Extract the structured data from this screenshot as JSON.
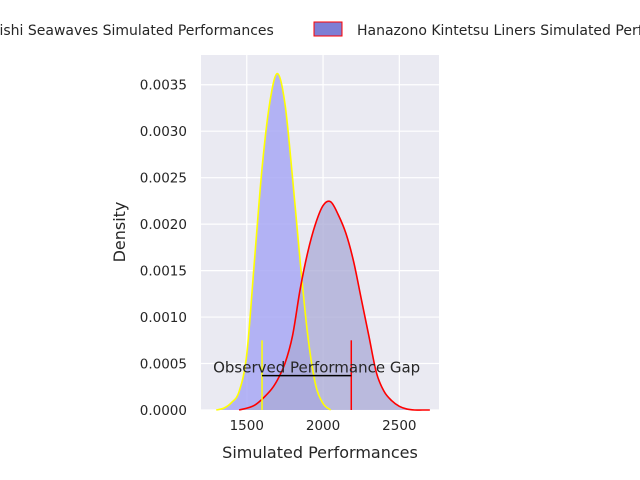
{
  "chart_data": {
    "type": "area",
    "title": "",
    "xlabel": "Simulated Performances",
    "ylabel": "Density",
    "xlim": [
      1200,
      2760
    ],
    "ylim": [
      0,
      0.00382
    ],
    "x_ticks": [
      1500,
      2000,
      2500
    ],
    "y_ticks": [
      0.0,
      0.0005,
      0.001,
      0.0015,
      0.002,
      0.0025,
      0.003,
      0.0035
    ],
    "x_tick_labels": [
      "1500",
      "2000",
      "2500"
    ],
    "y_tick_labels": [
      "0.0000",
      "0.0005",
      "0.0010",
      "0.0015",
      "0.0020",
      "0.0025",
      "0.0030",
      "0.0035"
    ],
    "grid": true,
    "legend": {
      "placement": "top",
      "position": "outside-top"
    },
    "series": [
      {
        "name": "Nishi Seawaves Simulated Performances",
        "legend_label": "Nishi Seawaves Simulated Performances",
        "fill": "#a8a8f5",
        "line": "#ffff00",
        "x": [
          1300,
          1350,
          1400,
          1450,
          1500,
          1550,
          1600,
          1650,
          1700,
          1750,
          1800,
          1850,
          1900,
          1950,
          2000,
          2050
        ],
        "y": [
          0.0,
          2e-05,
          8e-05,
          0.0002,
          0.0006,
          0.0016,
          0.0026,
          0.0033,
          0.00362,
          0.0033,
          0.0025,
          0.0016,
          0.0008,
          0.00028,
          7e-05,
          0.0
        ]
      },
      {
        "name": "Hanazono Kintetsu Liners Simulated Performances",
        "legend_label": "Hanazono Kintetsu Liners Simulated Performances",
        "fill": "#aaaad6",
        "line": "#ff0000",
        "x": [
          1450,
          1550,
          1650,
          1700,
          1750,
          1800,
          1850,
          1900,
          1950,
          2000,
          2050,
          2100,
          2150,
          2200,
          2250,
          2300,
          2350,
          2400,
          2450,
          2500,
          2550,
          2600,
          2650,
          2700
        ],
        "y": [
          0.0,
          5e-05,
          0.0002,
          0.00032,
          0.0005,
          0.0008,
          0.0013,
          0.0017,
          0.002,
          0.0022,
          0.00224,
          0.0021,
          0.0019,
          0.0016,
          0.0012,
          0.0008,
          0.0004,
          0.0002,
          0.0001,
          4e-05,
          1e-05,
          0.0,
          0.0,
          0.0
        ]
      }
    ],
    "markers": [
      {
        "x": 1600,
        "y_top": 0.00075,
        "color": "#ffff00"
      },
      {
        "x": 2185,
        "y_top": 0.00075,
        "color": "#ff0000"
      }
    ],
    "gap": {
      "x1": 1600,
      "x2": 2185,
      "y": 0.00037,
      "label": "Observed Performance Gap"
    }
  }
}
